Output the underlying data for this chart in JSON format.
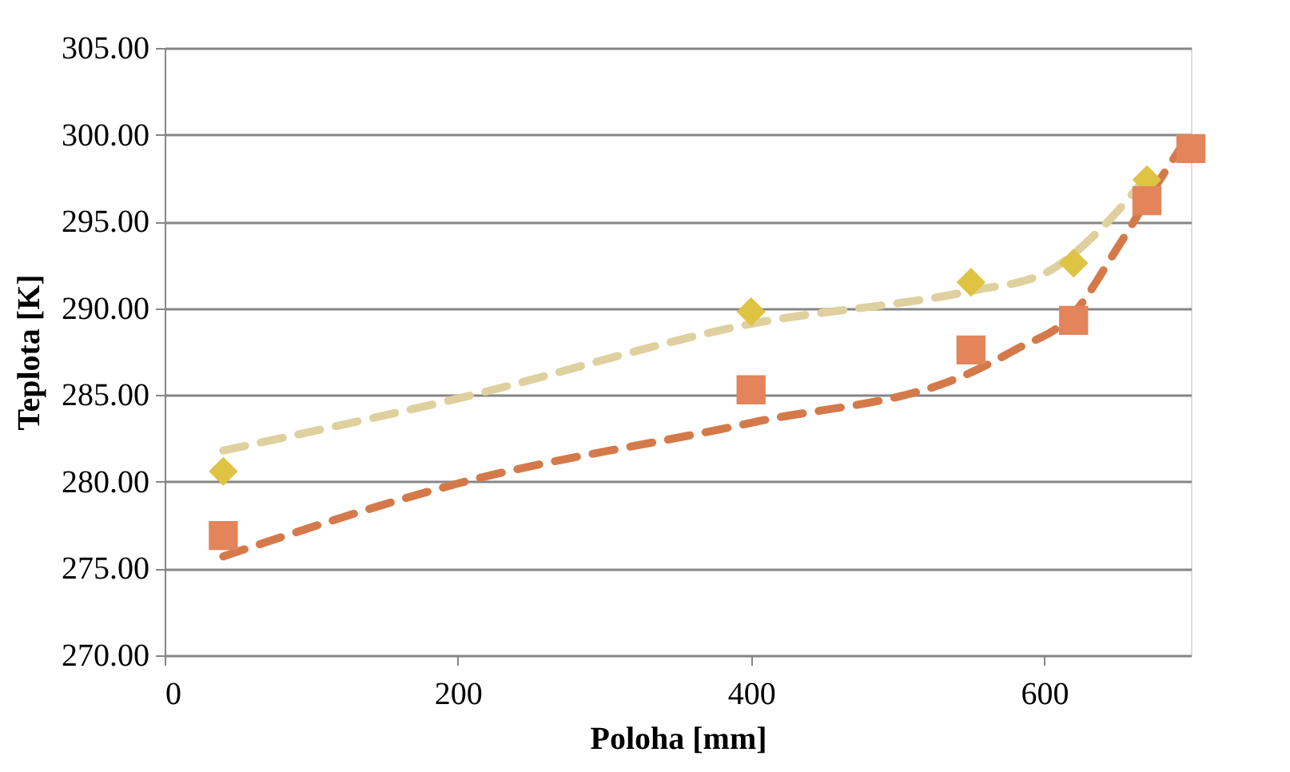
{
  "chart_data": {
    "type": "scatter",
    "xlabel": "Poloha [mm]",
    "ylabel": "Teplota [K]",
    "xlim": [
      0,
      700
    ],
    "xticks": [
      0,
      200,
      400,
      600
    ],
    "ylim": [
      270,
      305
    ],
    "yticks": [
      {
        "value": 270,
        "label": "270.00"
      },
      {
        "value": 275,
        "label": "275.00"
      },
      {
        "value": 280,
        "label": "280.00"
      },
      {
        "value": 285,
        "label": "285.00"
      },
      {
        "value": 290,
        "label": "290.00"
      },
      {
        "value": 295,
        "label": "295.00"
      },
      {
        "value": 300,
        "label": "300.00"
      },
      {
        "value": 305,
        "label": "305.00"
      }
    ],
    "grid": "y",
    "legend": false,
    "series": [
      {
        "type": "line",
        "line_style": "dashed",
        "color": "#dfd09f",
        "x": [
          40,
          200,
          400,
          550,
          600,
          640,
          670
        ],
        "values": [
          281.8,
          284.8,
          289.1,
          291.0,
          292.0,
          294.7,
          297.6
        ]
      },
      {
        "type": "line",
        "line_style": "dashed",
        "color": "#d47a4a",
        "x": [
          40,
          200,
          400,
          550,
          580,
          620,
          650,
          675,
          695
        ],
        "values": [
          275.7,
          279.9,
          283.4,
          286.3,
          287.6,
          289.7,
          293.5,
          296.9,
          299.5
        ]
      },
      {
        "marker": "diamond",
        "color": "#dfc343",
        "x": [
          40,
          400,
          550,
          620,
          670
        ],
        "values": [
          280.6,
          289.8,
          291.5,
          292.6,
          297.4
        ]
      },
      {
        "marker": "square",
        "color": "#e3845a",
        "x": [
          40,
          400,
          550,
          620,
          670,
          700
        ],
        "values": [
          276.9,
          285.3,
          287.6,
          289.3,
          296.2,
          299.2
        ]
      }
    ]
  }
}
